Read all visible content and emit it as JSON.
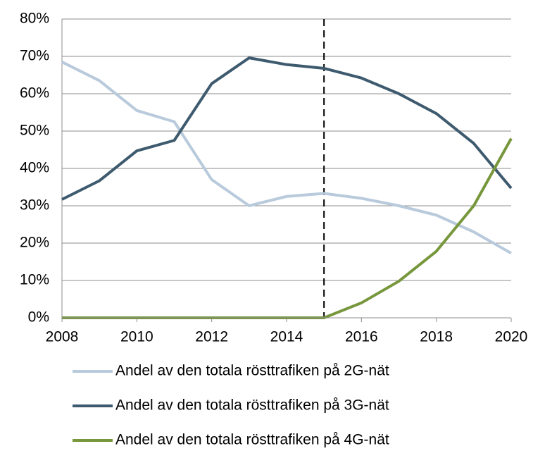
{
  "chart_data": {
    "type": "line",
    "x": [
      2008,
      2009,
      2010,
      2011,
      2012,
      2013,
      2014,
      2015,
      2016,
      2017,
      2018,
      2019,
      2020
    ],
    "series": [
      {
        "name": "Andel av den totala rösttrafiken på 2G-nät",
        "color": "#b8cadb",
        "values": [
          68.5,
          63.5,
          55.5,
          52.5,
          37,
          30,
          32.5,
          33.3,
          32,
          30,
          27.5,
          23,
          17.3
        ]
      },
      {
        "name": "Andel av den totala rösttrafiken på 3G-nät",
        "color": "#3e5a6e",
        "values": [
          31.7,
          36.7,
          44.7,
          47.5,
          62.7,
          69.6,
          67.8,
          66.8,
          64.2,
          60,
          54.7,
          46.7,
          34.7
        ]
      },
      {
        "name": "Andel av den totala rösttrafiken på 4G-nät",
        "color": "#77973c",
        "values": [
          0,
          0,
          0,
          0,
          0,
          0,
          0,
          0,
          4,
          9.8,
          17.8,
          30,
          48
        ]
      }
    ],
    "xlim": [
      2008,
      2020
    ],
    "xticks": [
      2008,
      2010,
      2012,
      2014,
      2016,
      2018,
      2020
    ],
    "ylim": [
      0,
      80
    ],
    "yticks": [
      {
        "value": 0,
        "label": "0%"
      },
      {
        "value": 10,
        "label": "10%"
      },
      {
        "value": 20,
        "label": "20%"
      },
      {
        "value": 30,
        "label": "30%"
      },
      {
        "value": 40,
        "label": "40%"
      },
      {
        "value": 50,
        "label": "50%"
      },
      {
        "value": 60,
        "label": "60%"
      },
      {
        "value": 70,
        "label": "70%"
      },
      {
        "value": 80,
        "label": "80%"
      }
    ],
    "grid": true,
    "vline_x": 2015,
    "legend": "bottom"
  }
}
